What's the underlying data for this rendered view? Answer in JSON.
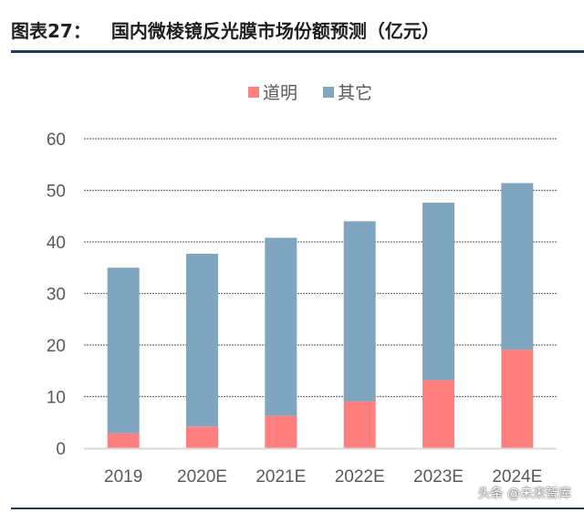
{
  "title": {
    "label": "图表27：",
    "text": "国内微棱镜反光膜市场份额预测（亿元）"
  },
  "watermark": "头条 @未来智库",
  "chart_data": {
    "type": "bar",
    "stacked": true,
    "categories": [
      "2019",
      "2020E",
      "2021E",
      "2022E",
      "2023E",
      "2024E"
    ],
    "series": [
      {
        "name": "道明",
        "color": "#ff7f7f",
        "values": [
          2.9,
          4.2,
          6.3,
          9.1,
          13.2,
          19.1
        ]
      },
      {
        "name": "其它",
        "color": "#7fa5bf",
        "values": [
          32.1,
          33.5,
          34.5,
          34.9,
          34.4,
          32.3
        ]
      }
    ],
    "ylim": [
      0,
      60
    ],
    "yticks": [
      0,
      10,
      20,
      30,
      40,
      50,
      60
    ],
    "grid": true,
    "legend": "top-center"
  }
}
